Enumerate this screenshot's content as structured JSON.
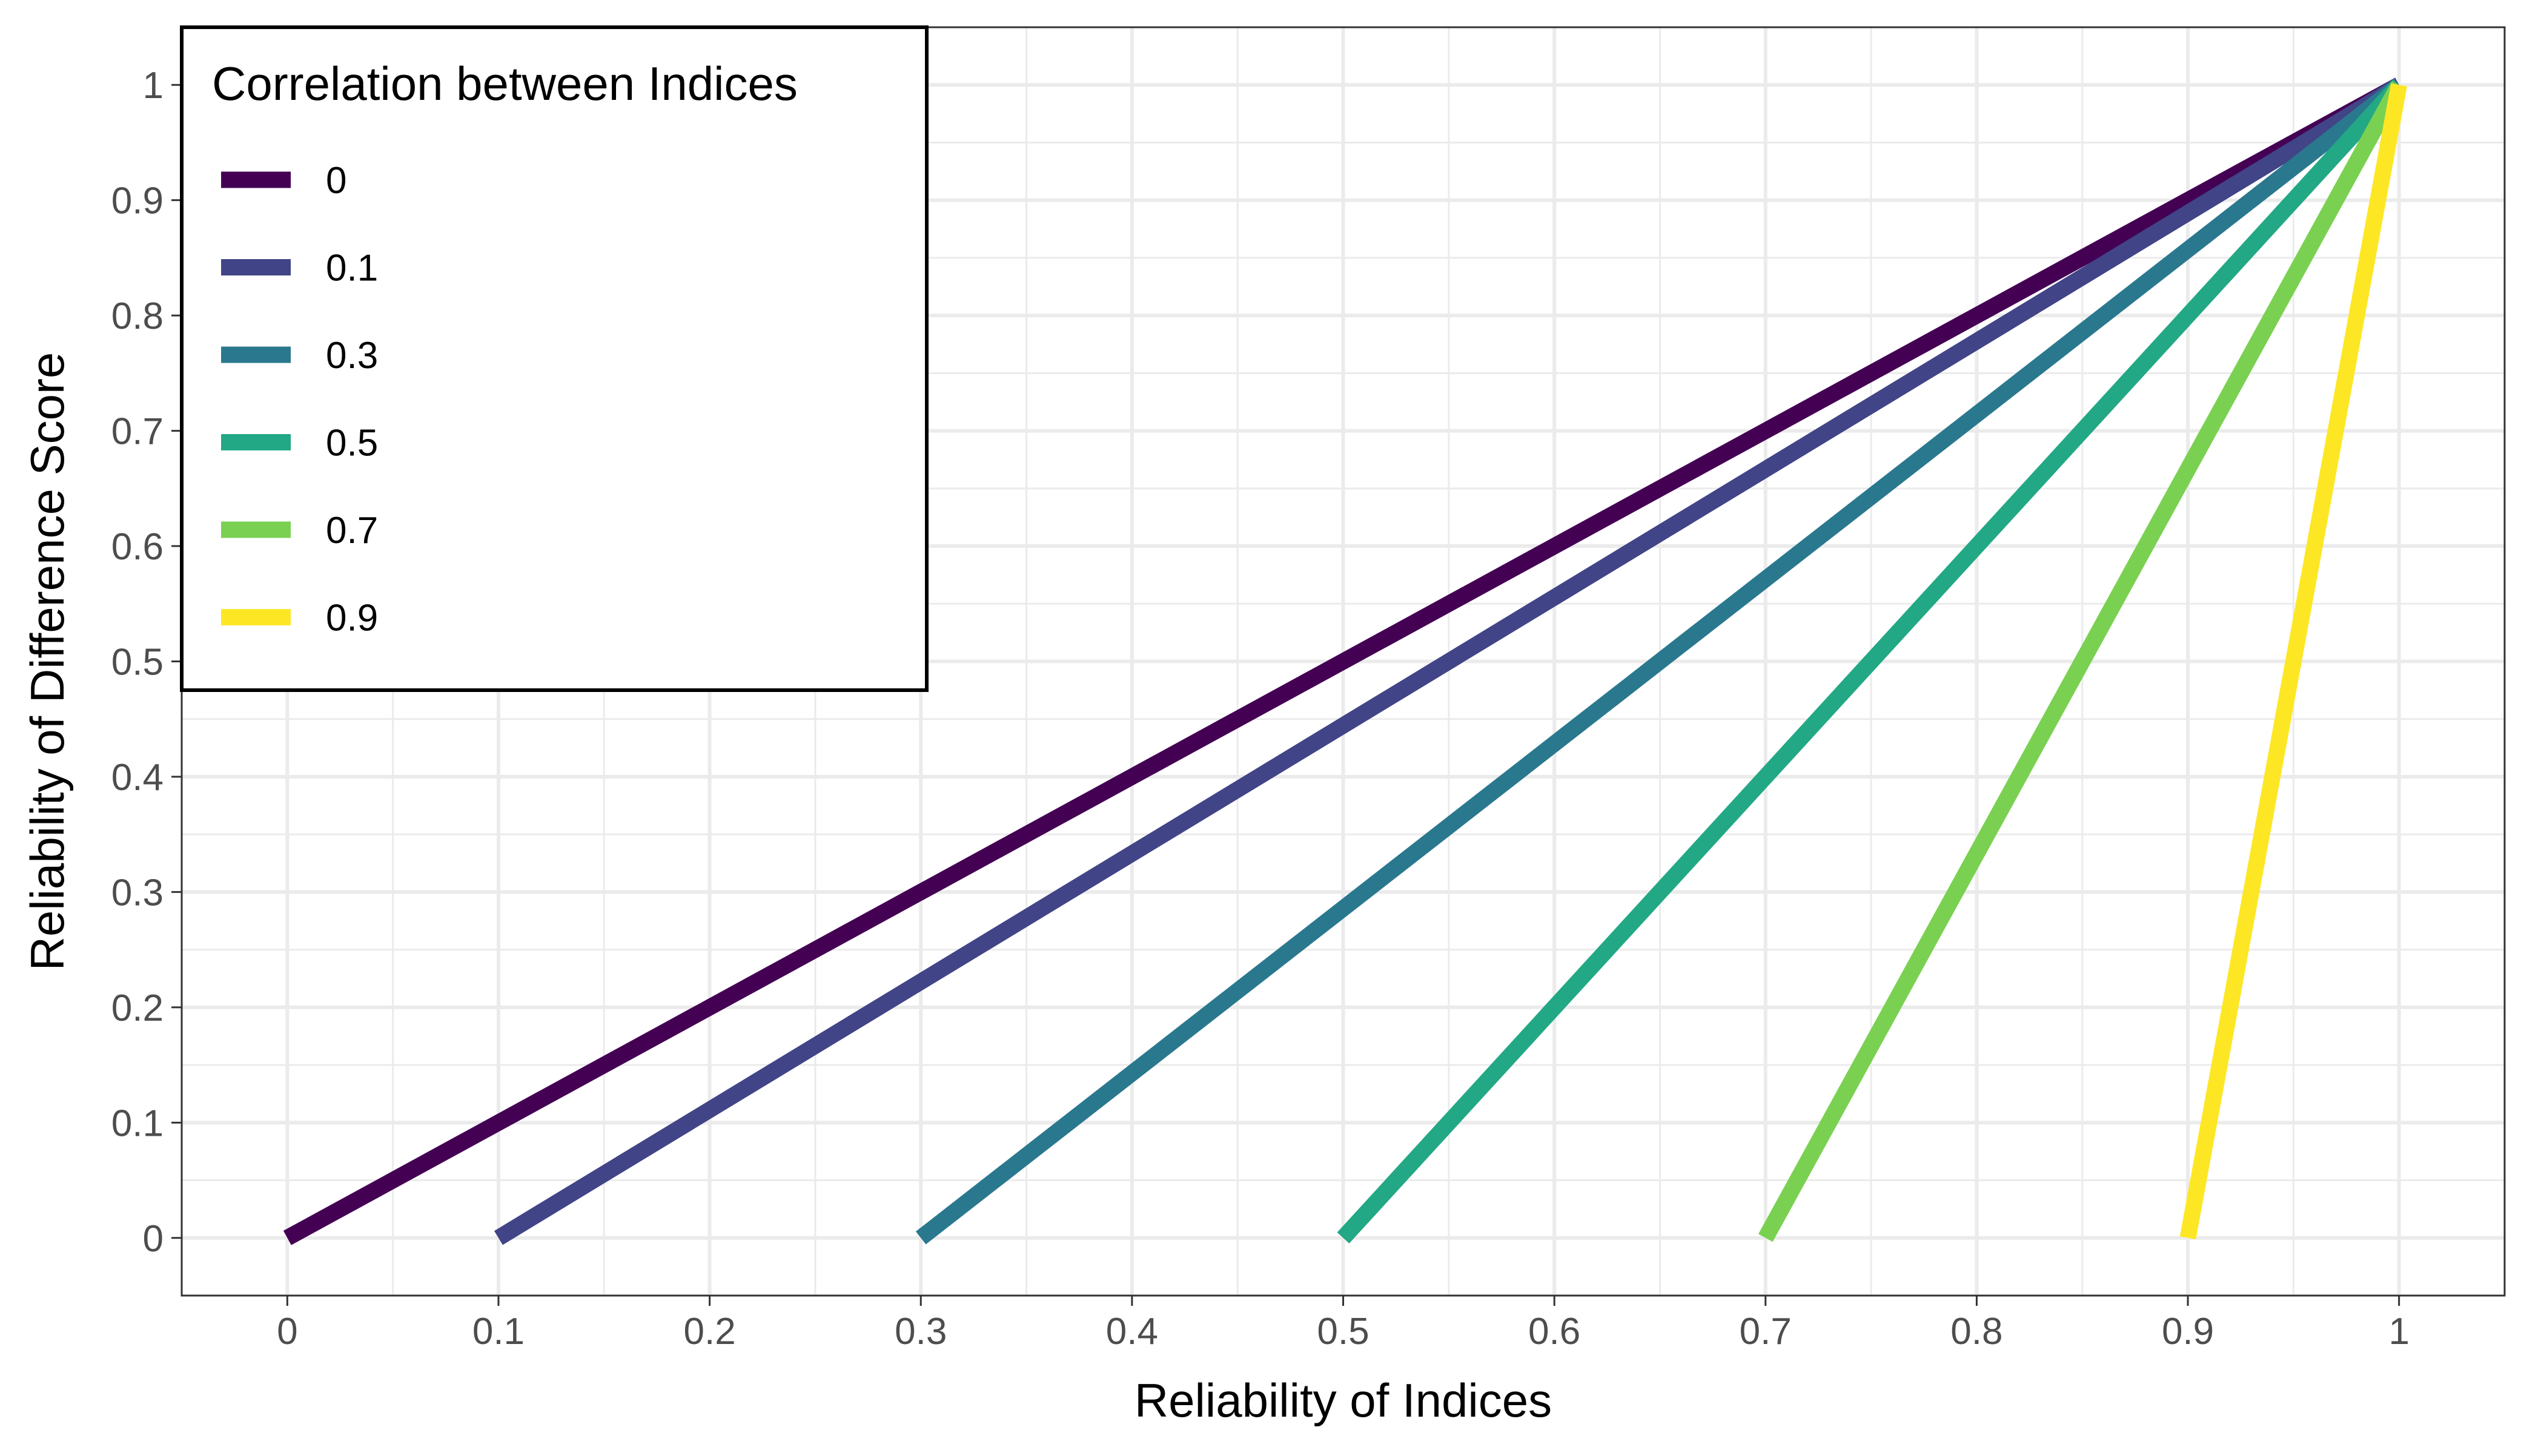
{
  "chart_data": {
    "type": "line",
    "title": "",
    "xlabel": "Reliability of Indices",
    "ylabel": "Reliability of Difference Score",
    "xlim": [
      -0.05,
      1.05
    ],
    "ylim": [
      -0.05,
      1.05
    ],
    "x_ticks": [
      0,
      0.1,
      0.2,
      0.3,
      0.4,
      0.5,
      0.6,
      0.7,
      0.8,
      0.9,
      1
    ],
    "x_tick_labels": [
      "0",
      "0.1",
      "0.2",
      "0.3",
      "0.4",
      "0.5",
      "0.6",
      "0.7",
      "0.8",
      "0.9",
      "1"
    ],
    "y_ticks": [
      0,
      0.1,
      0.2,
      0.3,
      0.4,
      0.5,
      0.6,
      0.7,
      0.8,
      0.9,
      1
    ],
    "y_tick_labels": [
      "0",
      "0.1",
      "0.2",
      "0.3",
      "0.4",
      "0.5",
      "0.6",
      "0.7",
      "0.8",
      "0.9",
      "1"
    ],
    "grid": true,
    "legend": {
      "title": "Correlation between Indices",
      "placement": "top-left"
    },
    "series": [
      {
        "name": "0",
        "color": "#440154",
        "x": [
          0.0,
          1.0
        ],
        "y": [
          0.0,
          1.0
        ]
      },
      {
        "name": "0.1",
        "color": "#414487",
        "x": [
          0.1,
          1.0
        ],
        "y": [
          0.0,
          1.0
        ]
      },
      {
        "name": "0.3",
        "color": "#2A788E",
        "x": [
          0.3,
          1.0
        ],
        "y": [
          0.0,
          1.0
        ]
      },
      {
        "name": "0.5",
        "color": "#22A884",
        "x": [
          0.5,
          1.0
        ],
        "y": [
          0.0,
          1.0
        ]
      },
      {
        "name": "0.7",
        "color": "#7AD151",
        "x": [
          0.7,
          1.0
        ],
        "y": [
          0.0,
          1.0
        ]
      },
      {
        "name": "0.9",
        "color": "#FDE725",
        "x": [
          0.9,
          1.0
        ],
        "y": [
          0.0,
          1.0
        ]
      }
    ]
  }
}
